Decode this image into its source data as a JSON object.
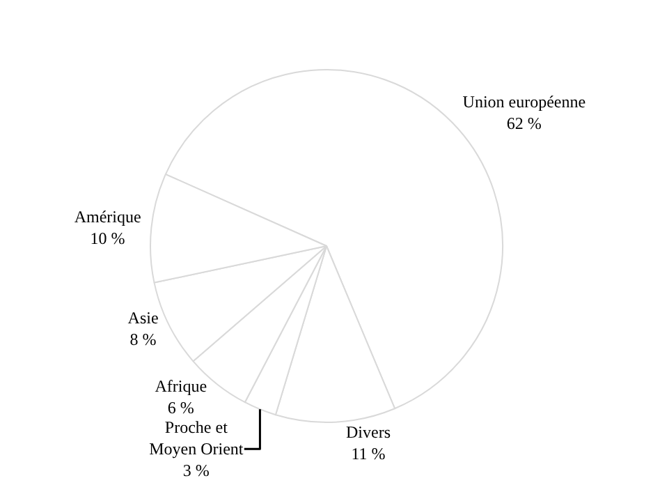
{
  "chart_data": {
    "type": "pie",
    "categories": [
      "Union européenne",
      "Divers",
      "Proche et Moyen Orient",
      "Afrique",
      "Asie",
      "Amérique"
    ],
    "values": [
      62,
      11,
      3,
      6,
      8,
      10
    ],
    "value_labels": [
      "62 %",
      "11 %",
      "3 %",
      "6 %",
      "8 %",
      "10 %"
    ],
    "colors": [
      "#ffffff",
      "#ffffff",
      "#ffffff",
      "#ffffff",
      "#ffffff",
      "#ffffff"
    ],
    "legend": false
  }
}
